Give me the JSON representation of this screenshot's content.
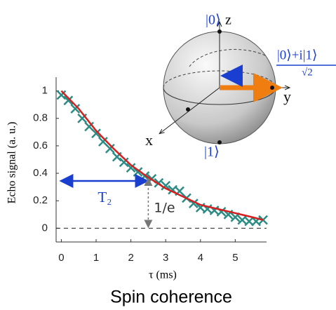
{
  "chart_data": {
    "type": "scatter",
    "ylabel": "Echo signal (a. u.)",
    "xlabel": "τ (ms)",
    "caption": "Spin coherence",
    "annotations": [
      "T₂",
      "1/e"
    ],
    "xlim": [
      -0.15,
      5.9
    ],
    "ylim": [
      -0.1,
      1.1
    ],
    "xticks": [
      0,
      1,
      2,
      3,
      4,
      5
    ],
    "yticks": [
      0,
      0.2,
      0.4,
      0.6,
      0.8,
      1
    ],
    "series": [
      {
        "color": "#2a8c84",
        "mode": "markers",
        "x": [
          0,
          0.2,
          0.4,
          0.6,
          0.8,
          1.0,
          1.2,
          1.4,
          1.6,
          1.8,
          2.0,
          2.2,
          2.4,
          2.6,
          2.8,
          3.0,
          3.2,
          3.4,
          3.6,
          3.8,
          4.0,
          4.2,
          4.4,
          4.6,
          4.8,
          5.0,
          5.2,
          5.4,
          5.6,
          5.8
        ],
        "values": [
          0.97,
          0.93,
          0.87,
          0.8,
          0.74,
          0.69,
          0.63,
          0.58,
          0.52,
          0.48,
          0.44,
          0.41,
          0.38,
          0.36,
          0.33,
          0.31,
          0.28,
          0.27,
          0.22,
          0.18,
          0.15,
          0.14,
          0.13,
          0.12,
          0.1,
          0.08,
          0.06,
          0.05,
          0.05,
          0.06
        ]
      },
      {
        "color": "#d42020",
        "mode": "line",
        "x": [
          0,
          0.5,
          1,
          1.5,
          2,
          2.5,
          3,
          3.5,
          4,
          4.5,
          5,
          5.5,
          5.8
        ],
        "values": [
          1,
          0.87,
          0.71,
          0.58,
          0.46,
          0.37,
          0.29,
          0.23,
          0.17,
          0.14,
          0.11,
          0.08,
          0.06
        ]
      }
    ],
    "bloch": {
      "top": "|0⟩",
      "z": "z",
      "state": "|0⟩+i|1⟩",
      "denominator": "√2",
      "y": "y",
      "x": "x",
      "bottom": "|1⟩"
    }
  }
}
